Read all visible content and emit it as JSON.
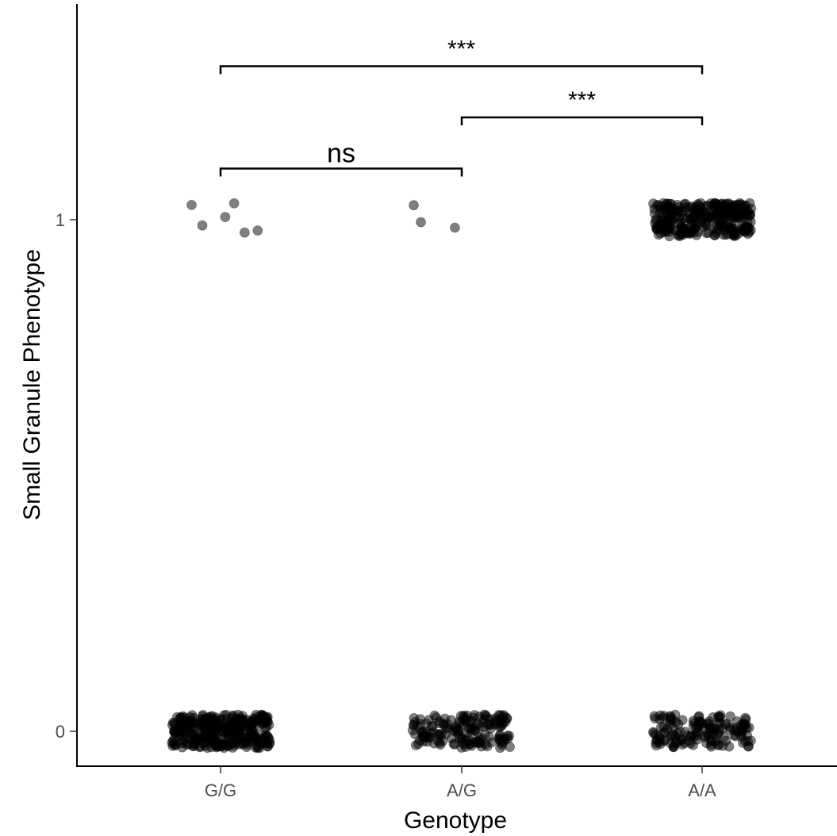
{
  "chart_data": {
    "type": "scatter",
    "style": "jitter",
    "xlabel": "Genotype",
    "ylabel": "Small Granule Phenotype",
    "categories": [
      "G/G",
      "A/G",
      "A/A"
    ],
    "yticks": [
      0,
      1
    ],
    "ylim": [
      -0.07,
      1.43
    ],
    "grid": false,
    "legend": "none",
    "point_color": "#000000",
    "groups": [
      {
        "category": "G/G",
        "points": [
          {
            "y": 0,
            "count": 330
          },
          {
            "y": 1,
            "count": 6
          }
        ]
      },
      {
        "category": "A/G",
        "points": [
          {
            "y": 0,
            "count": 160
          },
          {
            "y": 1,
            "count": 3
          }
        ]
      },
      {
        "category": "A/A",
        "points": [
          {
            "y": 0,
            "count": 150
          },
          {
            "y": 1,
            "count": 280
          }
        ]
      }
    ],
    "annotations": [
      {
        "from": "G/G",
        "to": "A/G",
        "label": "ns",
        "y": 1.1
      },
      {
        "from": "A/G",
        "to": "A/A",
        "label": "***",
        "y": 1.2
      },
      {
        "from": "G/G",
        "to": "A/A",
        "label": "***",
        "y": 1.3
      }
    ]
  }
}
